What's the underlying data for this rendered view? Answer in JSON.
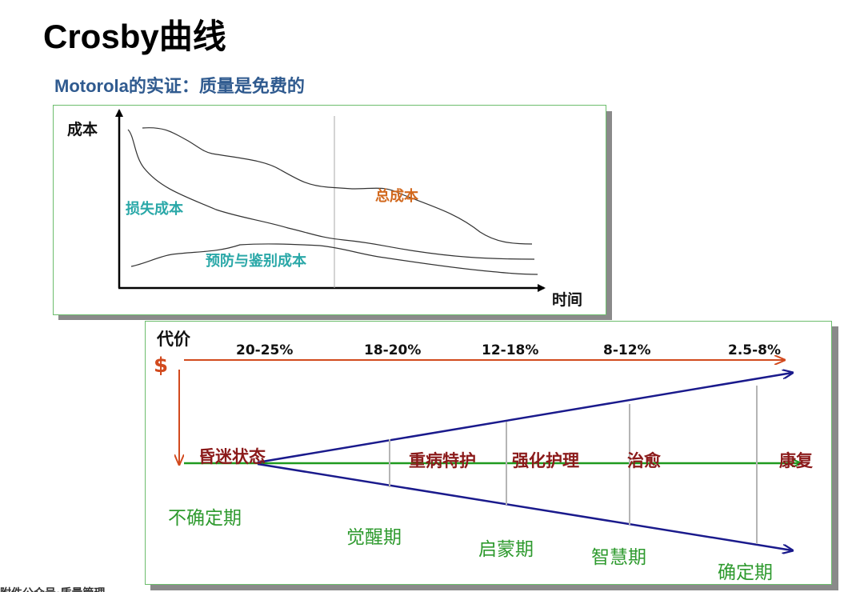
{
  "title": "Crosby曲线",
  "subtitle": "Motorola的实证：质量是免费的",
  "cost_chart": {
    "y_axis_label": "成本",
    "x_axis_label": "时间",
    "curves": {
      "total": "总成本",
      "failure": "损失成本",
      "prevention": "预防与鉴别成本"
    },
    "colors": {
      "total": "#d2691e",
      "failure": "#2aa8a8",
      "prevention": "#2aa8a8",
      "axis": "#000000"
    }
  },
  "maturity": {
    "cost_label": "代价",
    "currency": "$",
    "percentages": [
      "20-25%",
      "18-20%",
      "12-18%",
      "8-12%",
      "2.5-8%"
    ],
    "stages": [
      "昏迷状态",
      "重病特护",
      "强化护理",
      "治愈",
      "康复"
    ],
    "periods": [
      "不确定期",
      "觉醒期",
      "启蒙期",
      "智慧期",
      "确定期"
    ],
    "colors": {
      "cost_arrow": "#d24a1e",
      "baseline": "#1f9a1f",
      "funnel": "#1a1a8c",
      "stage": "#8b1a1a",
      "period": "#2e9a2e"
    }
  },
  "footer": "附件公众号·质量管理"
}
